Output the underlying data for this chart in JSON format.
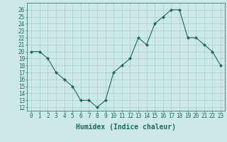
{
  "x": [
    0,
    1,
    2,
    3,
    4,
    5,
    6,
    7,
    8,
    9,
    10,
    11,
    12,
    13,
    14,
    15,
    16,
    17,
    18,
    19,
    20,
    21,
    22,
    23
  ],
  "y": [
    20,
    20,
    19,
    17,
    16,
    15,
    13,
    13,
    12,
    13,
    17,
    18,
    19,
    22,
    21,
    24,
    25,
    26,
    26,
    22,
    22,
    21,
    20,
    18
  ],
  "line_color": "#1a6b5a",
  "marker_color": "#1a6b5a",
  "bg_color": "#cce8e8",
  "grid_color": "#a8cccc",
  "xlabel": "Humidex (Indice chaleur)",
  "xlim": [
    -0.5,
    23.5
  ],
  "ylim": [
    11.5,
    27
  ],
  "yticks": [
    12,
    13,
    14,
    15,
    16,
    17,
    18,
    19,
    20,
    21,
    22,
    23,
    24,
    25,
    26
  ],
  "xticks": [
    0,
    1,
    2,
    3,
    4,
    5,
    6,
    7,
    8,
    9,
    10,
    11,
    12,
    13,
    14,
    15,
    16,
    17,
    18,
    19,
    20,
    21,
    22,
    23
  ],
  "tick_fontsize": 5.5,
  "xlabel_fontsize": 7,
  "label_color": "#1a6b5a"
}
